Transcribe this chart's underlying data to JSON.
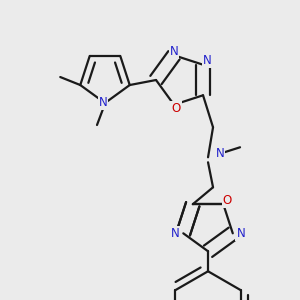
{
  "bg_color": "#ebebeb",
  "bond_color": "#1a1a1a",
  "N_color": "#2222cc",
  "O_color": "#cc0000",
  "lw": 1.6,
  "dbo": 0.013,
  "figsize": [
    3.0,
    3.0
  ],
  "dpi": 100,
  "xlim": [
    0,
    300
  ],
  "ylim": [
    0,
    300
  ]
}
